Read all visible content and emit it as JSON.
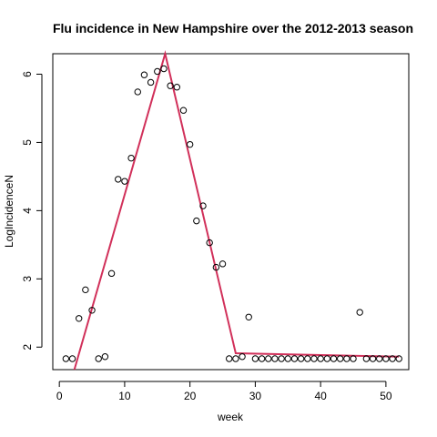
{
  "chart_data": {
    "type": "scatter",
    "title": "Flu incidence in New Hampshire over the 2012-2013 season",
    "xlabel": "week",
    "ylabel": "LogIncidenceN",
    "xlim": [
      -1,
      53.5
    ],
    "ylim": [
      1.67,
      6.3
    ],
    "xticks": [
      0,
      10,
      20,
      30,
      40,
      50
    ],
    "yticks": [
      2,
      3,
      4,
      5,
      6
    ],
    "grid": false,
    "legend": "none",
    "colors": {
      "points": "#000000",
      "fit": "#d1305a",
      "frame": "#000000"
    },
    "points": {
      "x": [
        1,
        2,
        3,
        4,
        5,
        6,
        7,
        8,
        9,
        10,
        11,
        12,
        13,
        14,
        15,
        16,
        17,
        18,
        19,
        20,
        21,
        22,
        23,
        24,
        25,
        26,
        27,
        28,
        29,
        30,
        31,
        32,
        33,
        34,
        35,
        36,
        37,
        38,
        39,
        40,
        41,
        42,
        43,
        44,
        45,
        46,
        47,
        48,
        49,
        50,
        51,
        52
      ],
      "y": [
        1.83,
        1.83,
        2.42,
        2.84,
        2.54,
        1.83,
        1.86,
        3.08,
        4.46,
        4.43,
        4.77,
        5.74,
        5.99,
        5.88,
        6.04,
        6.08,
        5.83,
        5.81,
        5.47,
        4.97,
        3.85,
        4.07,
        3.53,
        3.17,
        3.22,
        1.83,
        1.83,
        1.86,
        2.44,
        1.83,
        1.83,
        1.83,
        1.83,
        1.83,
        1.83,
        1.83,
        1.83,
        1.83,
        1.83,
        1.83,
        1.83,
        1.83,
        1.83,
        1.83,
        1.83,
        2.51,
        1.83,
        1.83,
        1.83,
        1.83,
        1.83,
        1.83
      ]
    },
    "fit_line": {
      "x": [
        2.3,
        16.2,
        27,
        52
      ],
      "y": [
        1.67,
        6.3,
        1.91,
        1.86
      ]
    }
  }
}
